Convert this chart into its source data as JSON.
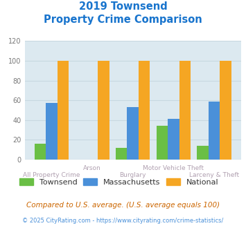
{
  "title_line1": "2019 Townsend",
  "title_line2": "Property Crime Comparison",
  "title_color": "#1874cd",
  "categories": [
    "All Property Crime",
    "Arson",
    "Burglary",
    "Motor Vehicle Theft",
    "Larceny & Theft"
  ],
  "townsend": [
    16,
    0,
    12,
    34,
    14
  ],
  "massachusetts": [
    57,
    0,
    53,
    41,
    59
  ],
  "national": [
    100,
    100,
    100,
    100,
    100
  ],
  "color_townsend": "#6abf45",
  "color_massachusetts": "#4a90d9",
  "color_national": "#f5a623",
  "ylim": [
    0,
    120
  ],
  "yticks": [
    0,
    20,
    40,
    60,
    80,
    100,
    120
  ],
  "bg_color": "#dce9f0",
  "legend_labels": [
    "Townsend",
    "Massachusetts",
    "National"
  ],
  "footnote1": "Compared to U.S. average. (U.S. average equals 100)",
  "footnote2": "© 2025 CityRating.com - https://www.cityrating.com/crime-statistics/",
  "footnote1_color": "#cc6600",
  "footnote2_color": "#4a90d9",
  "label_color": "#b0a0b0",
  "grid_color": "#c8d8e0"
}
